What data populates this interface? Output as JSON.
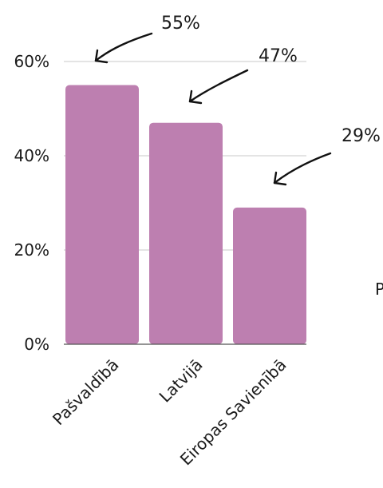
{
  "chart_data": {
    "type": "bar",
    "categories": [
      "Pašvaldībā",
      "Latvijā",
      "Eiropas Savienībā"
    ],
    "values": [
      55,
      47,
      29
    ],
    "data_labels": [
      "55%",
      "47%",
      "29%"
    ],
    "title": "",
    "xlabel": "",
    "ylabel": "",
    "ylim": [
      0,
      60
    ],
    "y_ticks": [
      0,
      20,
      40,
      60
    ],
    "y_tick_labels": [
      "0%",
      "20%",
      "40%",
      "60%"
    ],
    "grid": true,
    "legend": "none",
    "bar_color": "#bd7fb0",
    "gridline_color": "#c8c8c8",
    "axis_color": "#555555",
    "annotation_style": "hand-drawn arrows pointing to bar tops"
  },
  "clipped_label": "P"
}
